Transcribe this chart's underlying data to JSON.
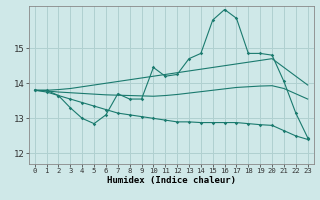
{
  "xlabel": "Humidex (Indice chaleur)",
  "ylabel": "",
  "background_color": "#cfe8e8",
  "grid_color": "#b0d0d0",
  "line_color": "#1a7a6e",
  "xlim": [
    -0.5,
    23.5
  ],
  "ylim": [
    11.7,
    16.2
  ],
  "yticks": [
    12,
    13,
    14,
    15
  ],
  "xticks": [
    0,
    1,
    2,
    3,
    4,
    5,
    6,
    7,
    8,
    9,
    10,
    11,
    12,
    13,
    14,
    15,
    16,
    17,
    18,
    19,
    20,
    21,
    22,
    23
  ],
  "main_x": [
    0,
    1,
    2,
    3,
    4,
    5,
    6,
    7,
    8,
    9,
    10,
    11,
    12,
    13,
    14,
    15,
    16,
    17,
    18,
    19,
    20,
    21,
    22,
    23
  ],
  "main_y": [
    13.8,
    13.8,
    13.65,
    13.3,
    13.0,
    12.85,
    13.1,
    13.7,
    13.55,
    13.55,
    14.45,
    14.2,
    14.25,
    14.7,
    14.85,
    15.8,
    16.1,
    15.85,
    14.85,
    14.85,
    14.8,
    14.05,
    13.15,
    12.45
  ],
  "upper_x": [
    0,
    1,
    2,
    3,
    4,
    5,
    6,
    7,
    8,
    9,
    10,
    11,
    12,
    13,
    14,
    15,
    16,
    17,
    18,
    19,
    20,
    21,
    22,
    23
  ],
  "upper_y": [
    13.8,
    13.8,
    13.82,
    13.85,
    13.9,
    13.95,
    14.0,
    14.05,
    14.1,
    14.15,
    14.2,
    14.25,
    14.3,
    14.35,
    14.4,
    14.45,
    14.5,
    14.55,
    14.6,
    14.65,
    14.7,
    14.45,
    14.2,
    13.95
  ],
  "lower_x": [
    0,
    1,
    2,
    3,
    4,
    5,
    6,
    7,
    8,
    9,
    10,
    11,
    12,
    13,
    14,
    15,
    16,
    17,
    18,
    19,
    20,
    21,
    22,
    23
  ],
  "lower_y": [
    13.8,
    13.75,
    13.65,
    13.55,
    13.45,
    13.35,
    13.25,
    13.15,
    13.1,
    13.05,
    13.0,
    12.95,
    12.9,
    12.9,
    12.88,
    12.88,
    12.88,
    12.88,
    12.85,
    12.82,
    12.8,
    12.65,
    12.5,
    12.4
  ],
  "mid_x": [
    0,
    1,
    2,
    3,
    4,
    5,
    6,
    7,
    8,
    9,
    10,
    11,
    12,
    13,
    14,
    15,
    16,
    17,
    18,
    19,
    20,
    21,
    22,
    23
  ],
  "mid_y": [
    13.8,
    13.78,
    13.75,
    13.73,
    13.71,
    13.69,
    13.67,
    13.66,
    13.65,
    13.64,
    13.63,
    13.65,
    13.68,
    13.72,
    13.76,
    13.8,
    13.84,
    13.88,
    13.9,
    13.92,
    13.93,
    13.85,
    13.7,
    13.55
  ]
}
